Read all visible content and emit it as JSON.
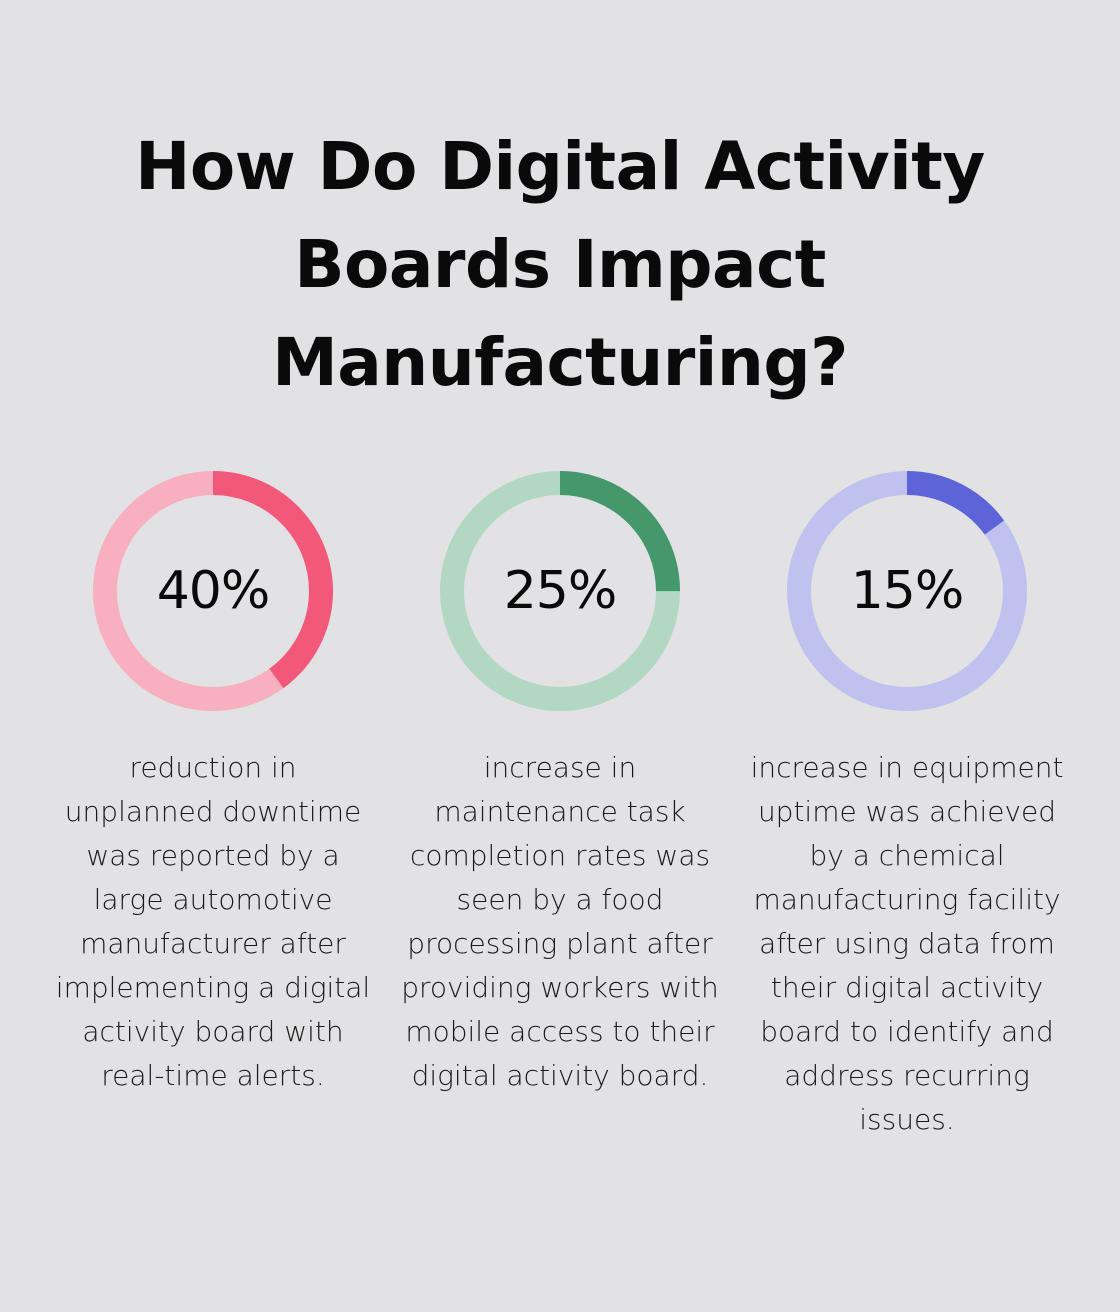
{
  "title_lines": [
    "How Do Digital Activity",
    "Boards Impact",
    "Manufacturing?"
  ],
  "chart_data": {
    "type": "donut",
    "items": [
      {
        "value": 40,
        "label": "40%",
        "description": "reduction in unplanned downtime was reported by a large automotive manufacturer after implementing a digital activity board with real-time alerts.",
        "color": "#f2587a",
        "track_color": "#f8afc0"
      },
      {
        "value": 25,
        "label": "25%",
        "description": "increase in maintenance task completion rates was seen by a food processing plant after providing workers with mobile access to their digital activity board.",
        "color": "#44986b",
        "track_color": "#b2d8c4"
      },
      {
        "value": 15,
        "label": "15%",
        "description": "increase in equipment uptime was achieved by a chemical manufacturing facility after using data from their digital activity board to identify and address recurring issues.",
        "color": "#5c64d8",
        "track_color": "#bfc2ee"
      }
    ]
  }
}
